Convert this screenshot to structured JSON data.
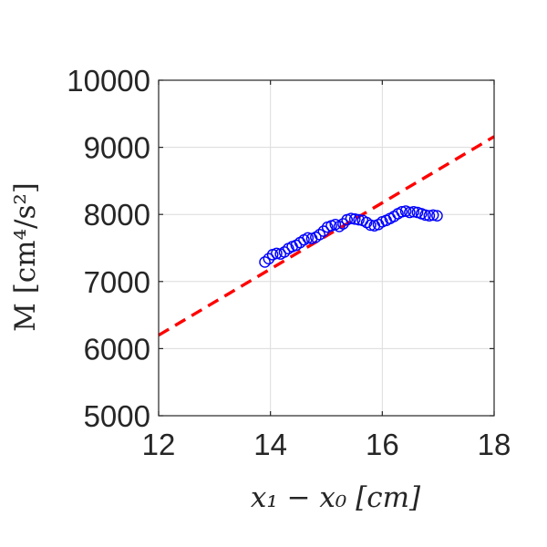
{
  "chart_data": {
    "type": "scatter",
    "title": "",
    "xlabel": "x₁ − x₀ [cm]",
    "ylabel": "M [cm⁴/s²]",
    "xlim": [
      12,
      18
    ],
    "ylim": [
      5000,
      10000
    ],
    "xticks": [
      "12",
      "14",
      "16",
      "18"
    ],
    "yticks": [
      "5000",
      "6000",
      "7000",
      "8000",
      "9000",
      "10000"
    ],
    "grid": true,
    "series": [
      {
        "kind": "markers",
        "marker": "circle-open",
        "color": "#0000ff",
        "x": [
          13.9,
          13.97,
          14.04,
          14.11,
          14.18,
          14.25,
          14.32,
          14.39,
          14.46,
          14.53,
          14.6,
          14.67,
          14.74,
          14.81,
          14.88,
          14.95,
          15.02,
          15.09,
          15.16,
          15.23,
          15.3,
          15.37,
          15.44,
          15.51,
          15.58,
          15.65,
          15.72,
          15.79,
          15.86,
          15.93,
          16.0,
          16.07,
          16.14,
          16.21,
          16.28,
          16.35,
          16.42,
          16.49,
          16.56,
          16.63,
          16.7,
          16.77,
          16.84,
          16.91,
          16.98
        ],
        "y": [
          7290,
          7340,
          7400,
          7420,
          7410,
          7440,
          7490,
          7520,
          7540,
          7580,
          7620,
          7650,
          7640,
          7660,
          7700,
          7750,
          7810,
          7830,
          7850,
          7820,
          7860,
          7920,
          7940,
          7930,
          7920,
          7910,
          7880,
          7840,
          7830,
          7850,
          7890,
          7910,
          7940,
          7970,
          8010,
          8040,
          8050,
          8030,
          8040,
          8030,
          8010,
          7990,
          7980,
          7990,
          7980
        ]
      },
      {
        "kind": "line",
        "style": "dashed",
        "color": "#ff0000",
        "x": [
          12,
          18
        ],
        "y": [
          6200,
          9160
        ]
      }
    ]
  }
}
